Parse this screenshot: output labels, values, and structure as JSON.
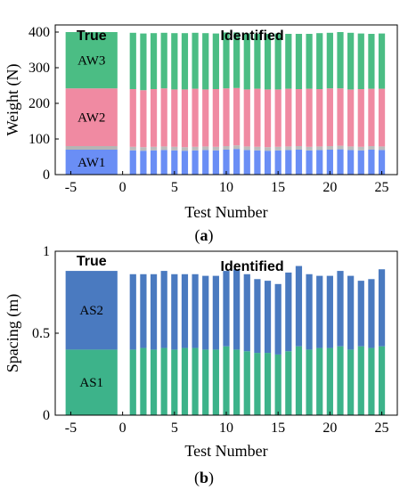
{
  "panels": {
    "a": {
      "caption_open": "(",
      "caption_letter": "a",
      "caption_close": ")"
    },
    "b": {
      "caption_open": "(",
      "caption_letter": "b",
      "caption_close": ")"
    }
  },
  "chart_data": [
    {
      "type": "bar",
      "stacked": true,
      "xlabel": "Test Number",
      "ylabel": "Weight (N)",
      "xlim": [
        -6.5,
        26.5
      ],
      "ylim": [
        0,
        420
      ],
      "xticks": [
        -5,
        0,
        5,
        10,
        15,
        20,
        25
      ],
      "yticks": [
        0,
        100,
        200,
        300,
        400
      ],
      "group_labels": {
        "true": "True",
        "identified": "Identified"
      },
      "true_bar": {
        "x_range": [
          -5.5,
          -0.5
        ],
        "segments": [
          {
            "label": "AW1",
            "bottom": 0,
            "top": 70
          },
          {
            "label": "AW2",
            "bottom": 80,
            "top": 242
          },
          {
            "label": "AW3",
            "bottom": 242,
            "top": 400
          }
        ]
      },
      "tests": [
        1,
        2,
        3,
        4,
        5,
        6,
        7,
        8,
        9,
        10,
        11,
        12,
        13,
        14,
        15,
        16,
        17,
        18,
        19,
        20,
        21,
        22,
        23,
        24,
        25
      ],
      "series": [
        {
          "name": "AW1",
          "values": [
            68,
            67,
            68,
            69,
            68,
            67,
            68,
            69,
            68,
            70,
            72,
            69,
            68,
            67,
            68,
            69,
            70,
            68,
            69,
            70,
            71,
            69,
            68,
            70,
            69
          ]
        },
        {
          "name": "AW2",
          "values": [
            172,
            170,
            172,
            173,
            171,
            172,
            173,
            170,
            172,
            172,
            171,
            170,
            173,
            172,
            171,
            172,
            170,
            173,
            171,
            172,
            171,
            170,
            172,
            171,
            172
          ]
        },
        {
          "name": "AW3",
          "values": [
            158,
            159,
            157,
            156,
            158,
            158,
            157,
            158,
            156,
            157,
            156,
            157,
            154,
            156,
            157,
            154,
            155,
            154,
            157,
            156,
            158,
            159,
            156,
            154,
            155
          ]
        }
      ],
      "colors": {
        "AW1": "#6a8ef5",
        "AW2": "#f08aa2",
        "AW3": "#4bbd84",
        "gap": "#b5b5b5"
      }
    },
    {
      "type": "bar",
      "stacked": true,
      "xlabel": "Test Number",
      "ylabel": "Spacing (m)",
      "xlim": [
        -6.5,
        26.5
      ],
      "ylim": [
        0,
        1.0
      ],
      "xticks": [
        -5,
        0,
        5,
        10,
        15,
        20,
        25
      ],
      "yticks": [
        0,
        0.5,
        1
      ],
      "group_labels": {
        "true": "True",
        "identified": "Identified"
      },
      "true_bar": {
        "x_range": [
          -5.5,
          -0.5
        ],
        "segments": [
          {
            "label": "AS1",
            "bottom": 0,
            "top": 0.4
          },
          {
            "label": "AS2",
            "bottom": 0.4,
            "top": 0.88
          }
        ]
      },
      "tests": [
        1,
        2,
        3,
        4,
        5,
        6,
        7,
        8,
        9,
        10,
        11,
        12,
        13,
        14,
        15,
        16,
        17,
        18,
        19,
        20,
        21,
        22,
        23,
        24,
        25
      ],
      "series": [
        {
          "name": "AS1",
          "values": [
            0.4,
            0.41,
            0.4,
            0.41,
            0.4,
            0.41,
            0.41,
            0.4,
            0.4,
            0.42,
            0.4,
            0.39,
            0.38,
            0.38,
            0.37,
            0.39,
            0.42,
            0.4,
            0.41,
            0.41,
            0.42,
            0.4,
            0.42,
            0.41,
            0.42
          ]
        },
        {
          "name": "AS2",
          "values": [
            0.46,
            0.45,
            0.46,
            0.47,
            0.46,
            0.45,
            0.45,
            0.45,
            0.45,
            0.46,
            0.49,
            0.47,
            0.45,
            0.44,
            0.43,
            0.48,
            0.49,
            0.46,
            0.44,
            0.44,
            0.46,
            0.45,
            0.4,
            0.42,
            0.47
          ]
        }
      ],
      "colors": {
        "AS1": "#3db38a",
        "AS2": "#4a7ac0"
      }
    }
  ]
}
